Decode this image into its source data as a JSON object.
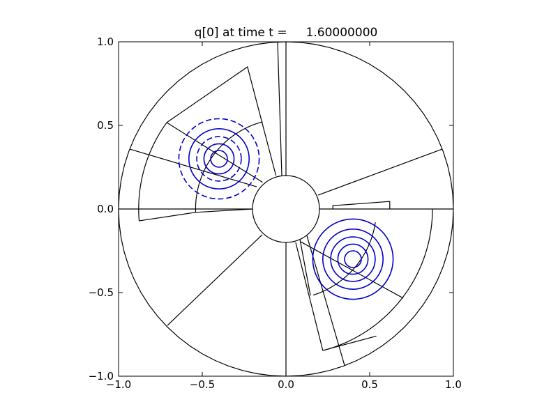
{
  "chart_data": {
    "type": "contour",
    "title": "q[0] at time t =     1.60000000",
    "xlim": [
      -1.0,
      1.0
    ],
    "ylim": [
      -1.0,
      1.0
    ],
    "xticks": [
      {
        "value": -1.0,
        "label": "−1.0"
      },
      {
        "value": -0.5,
        "label": "−0.5"
      },
      {
        "value": 0.0,
        "label": "0.0"
      },
      {
        "value": 0.5,
        "label": "0.5"
      },
      {
        "value": 1.0,
        "label": "1.0"
      }
    ],
    "yticks": [
      {
        "value": -1.0,
        "label": "−1.0"
      },
      {
        "value": -0.5,
        "label": "−0.5"
      },
      {
        "value": 0.0,
        "label": "0.0"
      },
      {
        "value": 0.5,
        "label": "0.5"
      },
      {
        "value": 1.0,
        "label": "1.0"
      }
    ],
    "mesh_color": "#000000",
    "mesh": [
      {
        "arc": [
          1.0,
          0,
          360
        ]
      },
      {
        "arc": [
          0.2,
          0,
          360
        ]
      },
      {
        "points": [
          [
            -1.0,
            0.0
          ],
          [
            -0.2,
            0.0
          ]
        ]
      },
      {
        "points": [
          [
            0.2,
            0.0
          ],
          [
            1.0,
            0.0
          ]
        ]
      },
      {
        "points": [
          [
            0.0,
            0.2
          ],
          [
            0.0,
            1.0
          ]
        ]
      },
      {
        "points": [
          [
            0.0,
            -0.2
          ],
          [
            0.0,
            -1.0
          ]
        ]
      },
      {
        "points": [
          [
            -0.933,
            0.358
          ],
          [
            -0.175,
            0.133
          ]
        ]
      },
      {
        "points": [
          [
            -0.7125,
            0.517
          ],
          [
            -0.14,
            0.16
          ]
        ]
      },
      {
        "points": [
          [
            -0.708,
            -0.696
          ],
          [
            -0.142,
            -0.154
          ]
        ]
      },
      {
        "points": [
          [
            -0.05,
            1.0
          ],
          [
            -0.025,
            0.2
          ]
        ]
      },
      {
        "points": [
          [
            -0.7125,
            0.517
          ],
          [
            -0.23,
            0.85
          ],
          [
            -0.06,
            0.2
          ]
        ]
      },
      {
        "arc": [
          0.88,
          144,
          184.6
        ]
      },
      {
        "points": [
          [
            -0.879,
            -0.071
          ],
          [
            -0.54,
            -0.02
          ],
          [
            -0.2,
            0.0
          ]
        ]
      },
      {
        "arc": [
          0.54,
          105,
          182
        ]
      },
      {
        "points": [
          [
            0.933,
            0.358
          ],
          [
            0.192,
            0.083
          ]
        ]
      },
      {
        "points": [
          [
            0.28,
            0.0
          ],
          [
            0.28,
            0.02
          ],
          [
            0.62,
            0.045
          ],
          [
            0.62,
            0.0
          ]
        ]
      },
      {
        "points": [
          [
            0.083,
            -0.179
          ],
          [
            0.146,
            -0.517
          ]
        ]
      },
      {
        "arc": [
          0.54,
          -72.5,
          -8.5
        ]
      },
      {
        "points": [
          [
            0.088,
            -0.196
          ],
          [
            0.7,
            -0.533
          ]
        ]
      },
      {
        "arc": [
          0.875,
          -75,
          0
        ]
      },
      {
        "points": [
          [
            0.058,
            -0.2
          ],
          [
            0.22,
            -0.846
          ],
          [
            0.54,
            -0.76
          ]
        ]
      },
      {
        "points": [
          [
            0.125,
            -0.16
          ],
          [
            0.35,
            -0.935
          ]
        ]
      }
    ],
    "contours": [
      {
        "center": [
          -0.4,
          0.3
        ],
        "color": "#0000cc",
        "levels": [
          {
            "r": 0.24,
            "dashed": true
          },
          {
            "r": 0.18,
            "dashed": false
          },
          {
            "r": 0.133,
            "dashed": true
          },
          {
            "r": 0.09,
            "dashed": false
          },
          {
            "r": 0.05,
            "dashed": false
          }
        ]
      },
      {
        "center": [
          0.4,
          -0.3
        ],
        "color": "#0000cc",
        "levels": [
          {
            "r": 0.24,
            "dashed": false
          },
          {
            "r": 0.18,
            "dashed": false
          },
          {
            "r": 0.133,
            "dashed": false
          },
          {
            "r": 0.09,
            "dashed": false
          },
          {
            "r": 0.05,
            "dashed": false
          }
        ]
      }
    ]
  }
}
